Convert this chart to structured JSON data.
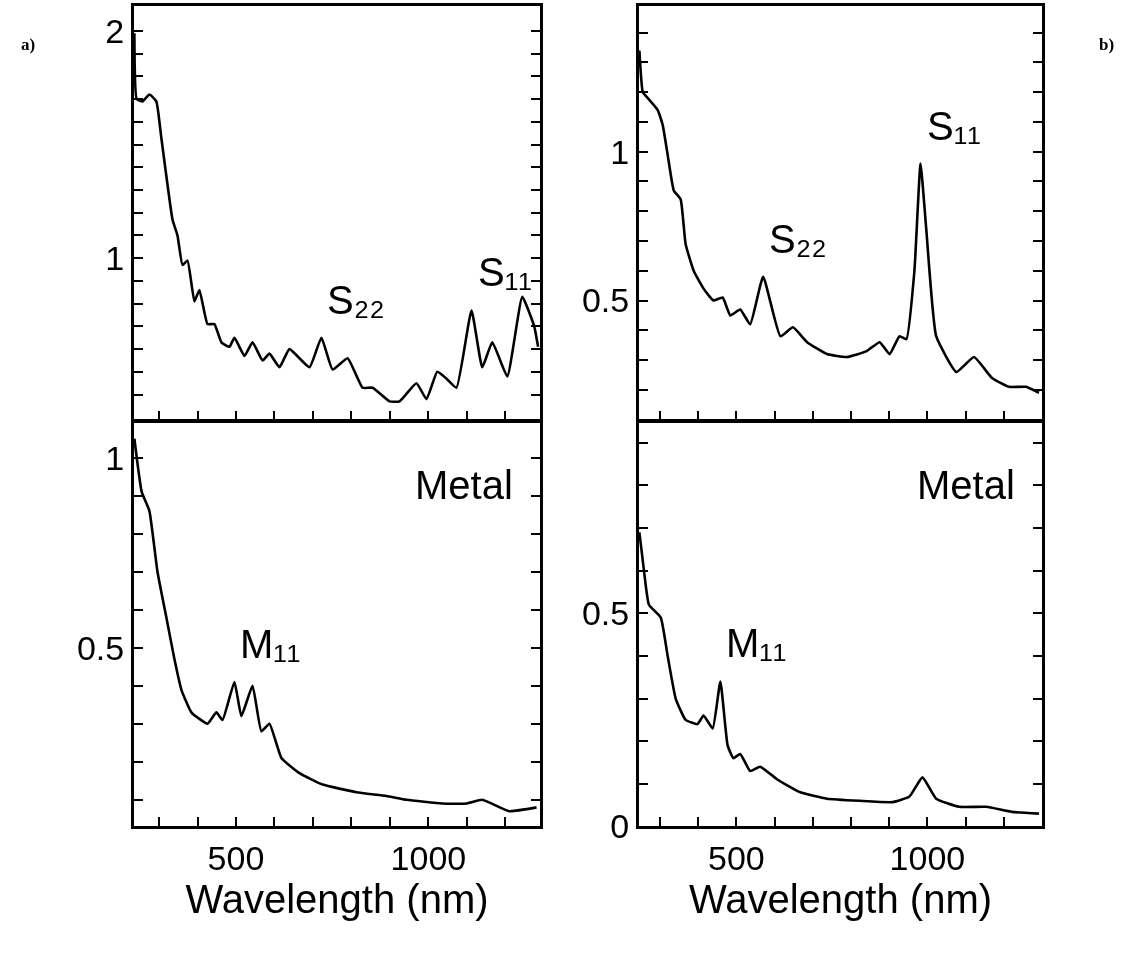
{
  "chart_data": [
    {
      "type": "line",
      "tick_labels": "y",
      "grid": false,
      "line_style": "solid",
      "marker": "none",
      "xlim": [
        235,
        1290
      ],
      "ylim": [
        0.29,
        2.11
      ],
      "xticks": [
        {
          "value": 300,
          "label": null
        },
        {
          "value": 400,
          "label": null
        },
        {
          "value": 500,
          "label": null
        },
        {
          "value": 600,
          "label": null
        },
        {
          "value": 700,
          "label": null
        },
        {
          "value": 800,
          "label": null
        },
        {
          "value": 900,
          "label": null
        },
        {
          "value": 1000,
          "label": null
        },
        {
          "value": 1100,
          "label": null
        },
        {
          "value": 1200,
          "label": null
        }
      ],
      "yticks": [
        {
          "value": 0.4,
          "label": null
        },
        {
          "value": 0.5,
          "label": null
        },
        {
          "value": 0.6,
          "label": null
        },
        {
          "value": 0.7,
          "label": null
        },
        {
          "value": 0.8,
          "label": null
        },
        {
          "value": 0.9,
          "label": null
        },
        1,
        {
          "value": 1.1,
          "label": null
        },
        {
          "value": 1.2,
          "label": null
        },
        {
          "value": 1.3,
          "label": null
        },
        {
          "value": 1.4,
          "label": null
        },
        {
          "value": 1.5,
          "label": null
        },
        {
          "value": 1.6,
          "label": null
        },
        {
          "value": 1.7,
          "label": null
        },
        {
          "value": 1.8,
          "label": null
        },
        {
          "value": 1.9,
          "label": null
        },
        2
      ],
      "series": [
        {
          "color": "#000000",
          "x": [
            236,
            242,
            257,
            275,
            293,
            306,
            335,
            348,
            361,
            374,
            392,
            405,
            426,
            444,
            462,
            483,
            496,
            522,
            543,
            569,
            587,
            613,
            639,
            691,
            722,
            751,
            790,
            829,
            855,
            899,
            925,
            969,
            995,
            1023,
            1047,
            1073,
            1112,
            1140,
            1166,
            1205,
            1244,
            1275,
            1285
          ],
          "values": [
            1.99,
            1.7,
            1.69,
            1.72,
            1.69,
            1.53,
            1.17,
            1.1,
            0.97,
            0.99,
            0.81,
            0.86,
            0.71,
            0.71,
            0.63,
            0.61,
            0.65,
            0.57,
            0.63,
            0.55,
            0.58,
            0.52,
            0.6,
            0.52,
            0.65,
            0.51,
            0.56,
            0.43,
            0.43,
            0.37,
            0.37,
            0.45,
            0.38,
            0.5,
            0.47,
            0.43,
            0.77,
            0.52,
            0.63,
            0.48,
            0.83,
            0.7,
            0.61
          ]
        }
      ],
      "annotations": [
        "a)",
        {
          "text": "S₂₂",
          "x": 722,
          "y": 0.65
        },
        {
          "text": "S₁₁",
          "x": 1112,
          "y": 0.77
        }
      ]
    },
    {
      "type": "line",
      "tick_labels": "y",
      "grid": false,
      "line_style": "solid",
      "marker": "none",
      "xlim": [
        245,
        1300
      ],
      "ylim": [
        0.1,
        1.49
      ],
      "xticks": [
        {
          "value": 300,
          "label": null
        },
        {
          "value": 400,
          "label": null
        },
        {
          "value": 500,
          "label": null
        },
        {
          "value": 600,
          "label": null
        },
        {
          "value": 700,
          "label": null
        },
        {
          "value": 800,
          "label": null
        },
        {
          "value": 900,
          "label": null
        },
        {
          "value": 1000,
          "label": null
        },
        {
          "value": 1100,
          "label": null
        },
        {
          "value": 1200,
          "label": null
        }
      ],
      "yticks": [
        {
          "value": 0.2,
          "label": null
        },
        {
          "value": 0.3,
          "label": null
        },
        {
          "value": 0.4,
          "label": null
        },
        0.5,
        {
          "value": 0.6,
          "label": null
        },
        {
          "value": 0.7,
          "label": null
        },
        {
          "value": 0.8,
          "label": null
        },
        {
          "value": 0.9,
          "label": null
        },
        1,
        {
          "value": 1.1,
          "label": null
        },
        {
          "value": 1.2,
          "label": null
        },
        {
          "value": 1.3,
          "label": null
        },
        {
          "value": 1.4,
          "label": null
        }
      ],
      "series": [
        {
          "color": "#000000",
          "x": [
            246,
            255,
            268,
            294,
            307,
            320,
            336,
            354,
            367,
            388,
            414,
            440,
            464,
            484,
            510,
            536,
            570,
            615,
            648,
            685,
            737,
            789,
            841,
            875,
            901,
            927,
            945,
            966,
            982,
            997,
            1023,
            1076,
            1122,
            1169,
            1214,
            1258,
            1292
          ],
          "values": [
            1.34,
            1.2,
            1.18,
            1.14,
            1.09,
            0.99,
            0.87,
            0.84,
            0.69,
            0.6,
            0.54,
            0.5,
            0.51,
            0.45,
            0.47,
            0.42,
            0.58,
            0.38,
            0.41,
            0.36,
            0.32,
            0.31,
            0.33,
            0.36,
            0.32,
            0.38,
            0.37,
            0.6,
            0.96,
            0.74,
            0.38,
            0.26,
            0.31,
            0.24,
            0.21,
            0.21,
            0.19
          ]
        }
      ],
      "annotations": [
        "b)",
        {
          "text": "S₂₂",
          "x": 570,
          "y": 0.58
        },
        {
          "text": "S₁₁",
          "x": 982,
          "y": 0.96
        }
      ]
    },
    {
      "type": "line",
      "grid": false,
      "line_style": "solid",
      "marker": "none",
      "xlabel": "Wavelength (nm)",
      "xlim": [
        235,
        1290
      ],
      "ylim": [
        0.03,
        1.095
      ],
      "xticks": [
        {
          "value": 300,
          "label": null
        },
        {
          "value": 400,
          "label": null
        },
        500,
        {
          "value": 600,
          "label": null
        },
        {
          "value": 700,
          "label": null
        },
        {
          "value": 800,
          "label": null
        },
        {
          "value": 900,
          "label": null
        },
        1000,
        {
          "value": 1100,
          "label": null
        },
        {
          "value": 1200,
          "label": null
        }
      ],
      "yticks": [
        {
          "value": 0.1,
          "label": null
        },
        {
          "value": 0.2,
          "label": null
        },
        {
          "value": 0.3,
          "label": null
        },
        {
          "value": 0.4,
          "label": null
        },
        0.5,
        {
          "value": 0.6,
          "label": null
        },
        {
          "value": 0.7,
          "label": null
        },
        {
          "value": 0.8,
          "label": null
        },
        {
          "value": 0.9,
          "label": null
        },
        1
      ],
      "series": [
        {
          "color": "#000000",
          "x": [
            236,
            255,
            275,
            296,
            319,
            340,
            358,
            384,
            426,
            449,
            465,
            496,
            514,
            543,
            566,
            587,
            618,
            665,
            725,
            813,
            891,
            943,
            1036,
            1099,
            1140,
            1210,
            1281
          ],
          "values": [
            1.05,
            0.91,
            0.86,
            0.7,
            0.58,
            0.47,
            0.39,
            0.33,
            0.3,
            0.33,
            0.31,
            0.41,
            0.32,
            0.4,
            0.28,
            0.3,
            0.21,
            0.17,
            0.14,
            0.12,
            0.11,
            0.1,
            0.09,
            0.09,
            0.1,
            0.07,
            0.08
          ]
        }
      ],
      "annotations": [
        "Metal",
        {
          "text": "M₁₁",
          "x": 496,
          "y": 0.41
        }
      ]
    },
    {
      "type": "line",
      "grid": false,
      "line_style": "solid",
      "marker": "none",
      "xlabel": "Wavelength (nm)",
      "xlim": [
        245,
        1300
      ],
      "ylim": [
        0,
        0.95
      ],
      "xticks": [
        {
          "value": 300,
          "label": null
        },
        {
          "value": 400,
          "label": null
        },
        500,
        {
          "value": 600,
          "label": null
        },
        {
          "value": 700,
          "label": null
        },
        {
          "value": 800,
          "label": null
        },
        {
          "value": 900,
          "label": null
        },
        1000,
        {
          "value": 1100,
          "label": null
        },
        {
          "value": 1200,
          "label": null
        }
      ],
      "yticks": [
        0,
        {
          "value": 0.1,
          "label": null
        },
        {
          "value": 0.2,
          "label": null
        },
        {
          "value": 0.3,
          "label": null
        },
        {
          "value": 0.4,
          "label": null
        },
        0.5,
        {
          "value": 0.6,
          "label": null
        },
        {
          "value": 0.7,
          "label": null
        },
        {
          "value": 0.8,
          "label": null
        },
        {
          "value": 0.9,
          "label": null
        }
      ],
      "series": [
        {
          "color": "#000000",
          "x": [
            246,
            258,
            271,
            302,
            320,
            341,
            367,
            398,
            414,
            438,
            458,
            477,
            492,
            510,
            536,
            562,
            607,
            667,
            737,
            823,
            909,
            953,
            987,
            1023,
            1083,
            1154,
            1221,
            1292
          ],
          "values": [
            0.69,
            0.6,
            0.52,
            0.49,
            0.4,
            0.3,
            0.25,
            0.24,
            0.26,
            0.23,
            0.34,
            0.19,
            0.16,
            0.17,
            0.13,
            0.14,
            0.11,
            0.08,
            0.065,
            0.06,
            0.057,
            0.07,
            0.115,
            0.065,
            0.046,
            0.046,
            0.034,
            0.03
          ]
        }
      ],
      "annotations": [
        "Metal",
        {
          "text": "M₁₁",
          "x": 458,
          "y": 0.34
        }
      ]
    }
  ]
}
